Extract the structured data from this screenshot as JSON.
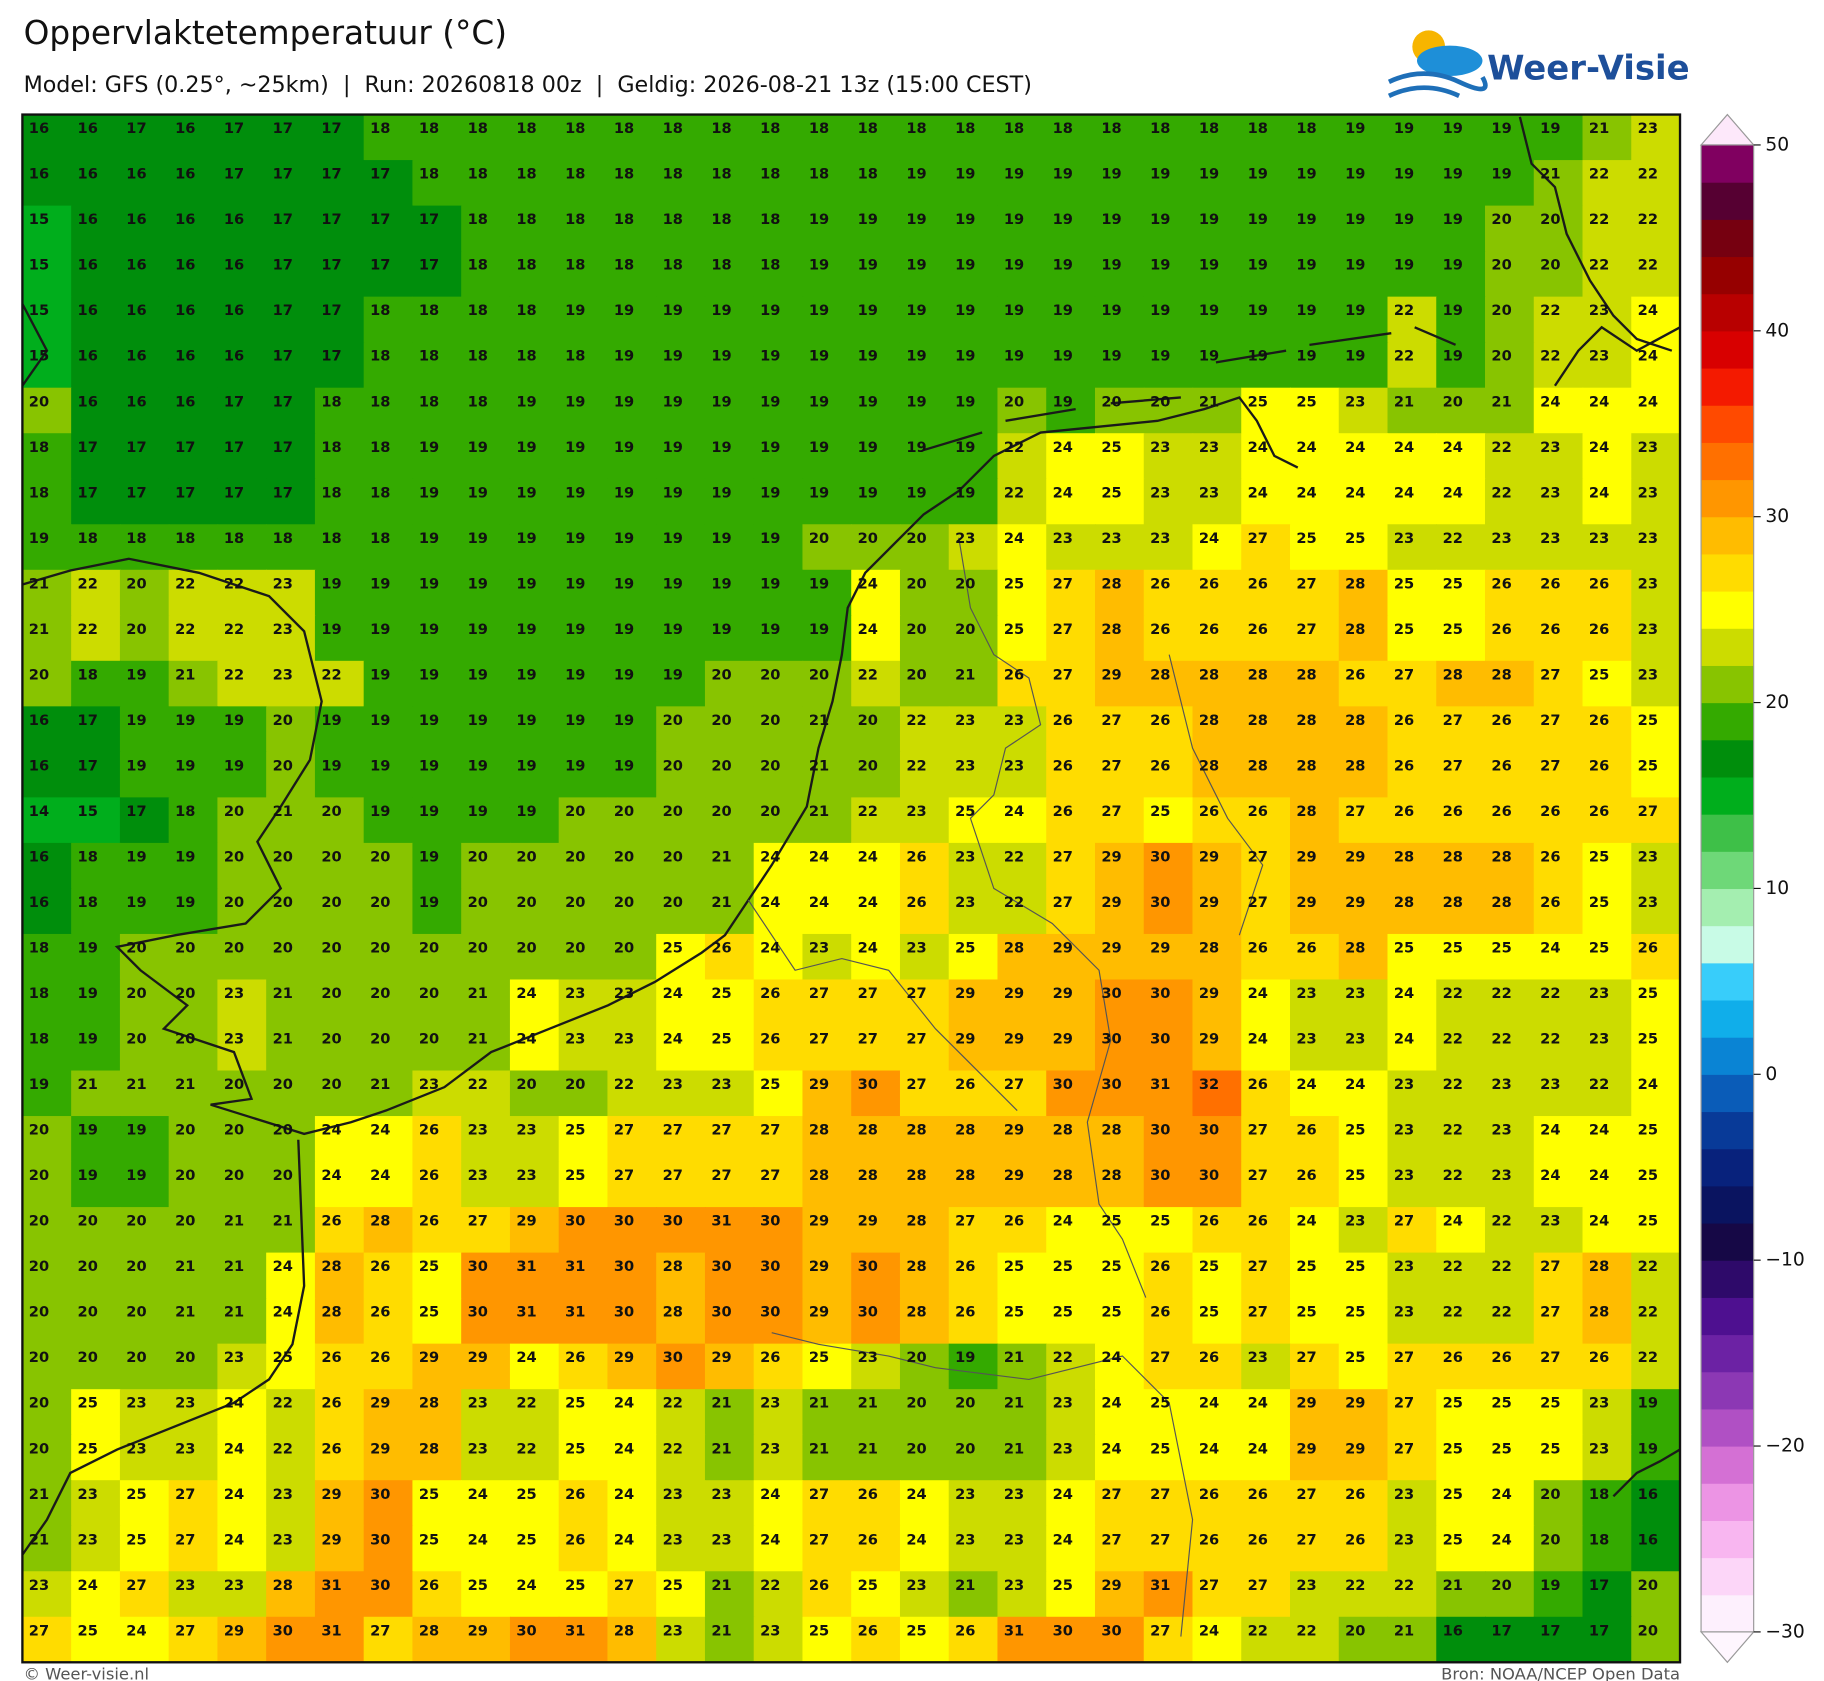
{
  "header": {
    "title": "Oppervlaktetemperatuur (°C)",
    "subtitle": "Model: GFS (0.25°, ~25km)  |  Run: 20260818 00z  |  Geldig: 2026-08-21 13z (15:00 CEST)",
    "logo": "Weer-Visie"
  },
  "map": {
    "values": [
      [
        16,
        16,
        17,
        16,
        17,
        17,
        17,
        18,
        18,
        18,
        18,
        18,
        18,
        18,
        18,
        18,
        18,
        18,
        18,
        18,
        18,
        18,
        18,
        18,
        18,
        18,
        18,
        19,
        19,
        19,
        19,
        19,
        21,
        23
      ],
      [
        16,
        16,
        16,
        16,
        17,
        17,
        17,
        17,
        18,
        18,
        18,
        18,
        18,
        18,
        18,
        18,
        18,
        18,
        19,
        19,
        19,
        19,
        19,
        19,
        19,
        19,
        19,
        19,
        19,
        19,
        19,
        21,
        22,
        22
      ],
      [
        15,
        16,
        16,
        16,
        16,
        17,
        17,
        17,
        17,
        18,
        18,
        18,
        18,
        18,
        18,
        18,
        19,
        19,
        19,
        19,
        19,
        19,
        19,
        19,
        19,
        19,
        19,
        19,
        19,
        19,
        20,
        20,
        22,
        22
      ],
      [
        15,
        16,
        16,
        16,
        16,
        17,
        17,
        17,
        17,
        18,
        18,
        18,
        18,
        18,
        18,
        18,
        19,
        19,
        19,
        19,
        19,
        19,
        19,
        19,
        19,
        19,
        19,
        19,
        19,
        19,
        20,
        20,
        22,
        22
      ],
      [
        15,
        16,
        16,
        16,
        16,
        17,
        17,
        18,
        18,
        18,
        18,
        19,
        19,
        19,
        19,
        19,
        19,
        19,
        19,
        19,
        19,
        19,
        19,
        19,
        19,
        19,
        19,
        19,
        22,
        19,
        20,
        22,
        23,
        24
      ],
      [
        15,
        16,
        16,
        16,
        16,
        17,
        17,
        18,
        18,
        18,
        18,
        18,
        19,
        19,
        19,
        19,
        19,
        19,
        19,
        19,
        19,
        19,
        19,
        19,
        19,
        19,
        19,
        19,
        22,
        19,
        20,
        22,
        23,
        24
      ],
      [
        20,
        16,
        16,
        16,
        17,
        17,
        18,
        18,
        18,
        18,
        19,
        19,
        19,
        19,
        19,
        19,
        19,
        19,
        19,
        19,
        20,
        19,
        20,
        20,
        21,
        25,
        25,
        23,
        21,
        20,
        21,
        24,
        24,
        24
      ],
      [
        18,
        17,
        17,
        17,
        17,
        17,
        18,
        18,
        19,
        19,
        19,
        19,
        19,
        19,
        19,
        19,
        19,
        19,
        19,
        19,
        22,
        24,
        25,
        23,
        23,
        24,
        24,
        24,
        24,
        24,
        22,
        23,
        24,
        23
      ],
      [
        18,
        17,
        17,
        17,
        17,
        17,
        18,
        18,
        19,
        19,
        19,
        19,
        19,
        19,
        19,
        19,
        19,
        19,
        19,
        19,
        22,
        24,
        25,
        23,
        23,
        24,
        24,
        24,
        24,
        24,
        22,
        23,
        24,
        23
      ],
      [
        19,
        18,
        18,
        18,
        18,
        18,
        18,
        18,
        19,
        19,
        19,
        19,
        19,
        19,
        19,
        19,
        20,
        20,
        20,
        23,
        24,
        23,
        23,
        23,
        24,
        27,
        25,
        25,
        23,
        22,
        23,
        23,
        23,
        23
      ],
      [
        21,
        22,
        20,
        22,
        22,
        23,
        19,
        19,
        19,
        19,
        19,
        19,
        19,
        19,
        19,
        19,
        19,
        24,
        20,
        20,
        25,
        27,
        28,
        26,
        26,
        26,
        27,
        28,
        25,
        25,
        26,
        26,
        26,
        23
      ],
      [
        21,
        22,
        20,
        22,
        22,
        23,
        19,
        19,
        19,
        19,
        19,
        19,
        19,
        19,
        19,
        19,
        19,
        24,
        20,
        20,
        25,
        27,
        28,
        26,
        26,
        26,
        27,
        28,
        25,
        25,
        26,
        26,
        26,
        23
      ],
      [
        20,
        18,
        19,
        21,
        22,
        23,
        22,
        19,
        19,
        19,
        19,
        19,
        19,
        19,
        20,
        20,
        20,
        22,
        20,
        21,
        26,
        27,
        29,
        28,
        28,
        28,
        28,
        26,
        27,
        28,
        28,
        27,
        25,
        23
      ],
      [
        16,
        17,
        19,
        19,
        19,
        20,
        19,
        19,
        19,
        19,
        19,
        19,
        19,
        20,
        20,
        20,
        21,
        20,
        22,
        23,
        23,
        26,
        27,
        26,
        28,
        28,
        28,
        28,
        26,
        27,
        26,
        27,
        26,
        25
      ],
      [
        16,
        17,
        19,
        19,
        19,
        20,
        19,
        19,
        19,
        19,
        19,
        19,
        19,
        20,
        20,
        20,
        21,
        20,
        22,
        23,
        23,
        26,
        27,
        26,
        28,
        28,
        28,
        28,
        26,
        27,
        26,
        27,
        26,
        25
      ],
      [
        14,
        15,
        17,
        18,
        20,
        21,
        20,
        19,
        19,
        19,
        19,
        20,
        20,
        20,
        20,
        20,
        21,
        22,
        23,
        25,
        24,
        26,
        27,
        25,
        26,
        26,
        28,
        27,
        26,
        26,
        26,
        26,
        26,
        27
      ],
      [
        16,
        18,
        19,
        19,
        20,
        20,
        20,
        20,
        19,
        20,
        20,
        20,
        20,
        20,
        21,
        24,
        24,
        24,
        26,
        23,
        22,
        27,
        29,
        30,
        29,
        27,
        29,
        29,
        28,
        28,
        28,
        26,
        25,
        23
      ],
      [
        16,
        18,
        19,
        19,
        20,
        20,
        20,
        20,
        19,
        20,
        20,
        20,
        20,
        20,
        21,
        24,
        24,
        24,
        26,
        23,
        22,
        27,
        29,
        30,
        29,
        27,
        29,
        29,
        28,
        28,
        28,
        26,
        25,
        23
      ],
      [
        18,
        19,
        20,
        20,
        20,
        20,
        20,
        20,
        20,
        20,
        20,
        20,
        20,
        25,
        26,
        24,
        23,
        24,
        23,
        25,
        28,
        29,
        29,
        29,
        28,
        26,
        26,
        28,
        25,
        25,
        25,
        24,
        25,
        26
      ],
      [
        18,
        19,
        20,
        20,
        23,
        21,
        20,
        20,
        20,
        21,
        24,
        23,
        23,
        24,
        25,
        26,
        27,
        27,
        27,
        29,
        29,
        29,
        30,
        30,
        29,
        24,
        23,
        23,
        24,
        22,
        22,
        22,
        23,
        25
      ],
      [
        18,
        19,
        20,
        20,
        23,
        21,
        20,
        20,
        20,
        21,
        24,
        23,
        23,
        24,
        25,
        26,
        27,
        27,
        27,
        29,
        29,
        29,
        30,
        30,
        29,
        24,
        23,
        23,
        24,
        22,
        22,
        22,
        23,
        25
      ],
      [
        19,
        21,
        21,
        21,
        20,
        20,
        20,
        21,
        23,
        22,
        20,
        20,
        22,
        23,
        23,
        25,
        29,
        30,
        27,
        26,
        27,
        30,
        30,
        31,
        32,
        26,
        24,
        24,
        23,
        22,
        23,
        23,
        22,
        24
      ],
      [
        20,
        19,
        19,
        20,
        20,
        20,
        24,
        24,
        26,
        23,
        23,
        25,
        27,
        27,
        27,
        27,
        28,
        28,
        28,
        28,
        29,
        28,
        28,
        30,
        30,
        27,
        26,
        25,
        23,
        22,
        23,
        24,
        24,
        25
      ],
      [
        20,
        19,
        19,
        20,
        20,
        20,
        24,
        24,
        26,
        23,
        23,
        25,
        27,
        27,
        27,
        27,
        28,
        28,
        28,
        28,
        29,
        28,
        28,
        30,
        30,
        27,
        26,
        25,
        23,
        22,
        23,
        24,
        24,
        25
      ],
      [
        20,
        20,
        20,
        20,
        21,
        21,
        26,
        28,
        26,
        27,
        29,
        30,
        30,
        30,
        31,
        30,
        29,
        29,
        28,
        27,
        26,
        24,
        25,
        25,
        26,
        26,
        24,
        23,
        27,
        24,
        22,
        23,
        24,
        25
      ],
      [
        20,
        20,
        20,
        21,
        21,
        24,
        28,
        26,
        25,
        30,
        31,
        31,
        30,
        28,
        30,
        30,
        29,
        30,
        28,
        26,
        25,
        25,
        25,
        26,
        25,
        27,
        25,
        25,
        23,
        22,
        22,
        27,
        28,
        22
      ],
      [
        20,
        20,
        20,
        21,
        21,
        24,
        28,
        26,
        25,
        30,
        31,
        31,
        30,
        28,
        30,
        30,
        29,
        30,
        28,
        26,
        25,
        25,
        25,
        26,
        25,
        27,
        25,
        25,
        23,
        22,
        22,
        27,
        28,
        22
      ],
      [
        20,
        20,
        20,
        20,
        23,
        25,
        26,
        26,
        29,
        29,
        24,
        26,
        29,
        30,
        29,
        26,
        25,
        23,
        20,
        19,
        21,
        22,
        24,
        27,
        26,
        23,
        27,
        25,
        27,
        26,
        26,
        27,
        26,
        22
      ],
      [
        20,
        25,
        23,
        23,
        24,
        22,
        26,
        29,
        28,
        23,
        22,
        25,
        24,
        22,
        21,
        23,
        21,
        21,
        20,
        20,
        21,
        23,
        24,
        25,
        24,
        24,
        29,
        29,
        27,
        25,
        25,
        25,
        23,
        19
      ],
      [
        20,
        25,
        23,
        23,
        24,
        22,
        26,
        29,
        28,
        23,
        22,
        25,
        24,
        22,
        21,
        23,
        21,
        21,
        20,
        20,
        21,
        23,
        24,
        25,
        24,
        24,
        29,
        29,
        27,
        25,
        25,
        25,
        23,
        19
      ],
      [
        21,
        23,
        25,
        27,
        24,
        23,
        29,
        30,
        25,
        24,
        25,
        26,
        24,
        23,
        23,
        24,
        27,
        26,
        24,
        23,
        23,
        24,
        27,
        27,
        26,
        26,
        27,
        26,
        23,
        25,
        24,
        20,
        18,
        16
      ],
      [
        21,
        23,
        25,
        27,
        24,
        23,
        29,
        30,
        25,
        24,
        25,
        26,
        24,
        23,
        23,
        24,
        27,
        26,
        24,
        23,
        23,
        24,
        27,
        27,
        26,
        26,
        27,
        26,
        23,
        25,
        24,
        20,
        18,
        16
      ],
      [
        23,
        24,
        27,
        23,
        23,
        28,
        31,
        30,
        26,
        25,
        24,
        25,
        27,
        25,
        21,
        22,
        26,
        25,
        23,
        21,
        23,
        25,
        29,
        31,
        27,
        27,
        23,
        22,
        22,
        21,
        20,
        19,
        17,
        20
      ],
      [
        27,
        25,
        24,
        27,
        29,
        30,
        31,
        27,
        28,
        29,
        30,
        31,
        28,
        23,
        21,
        23,
        25,
        26,
        25,
        26,
        31,
        30,
        30,
        27,
        24,
        22,
        22,
        20,
        21,
        16,
        17,
        17,
        17,
        20
      ]
    ]
  },
  "colorbar": {
    "lim": [
      -30,
      50
    ],
    "ticks": [
      {
        "value": -30,
        "label": "−30"
      },
      {
        "value": -20,
        "label": "−20"
      },
      {
        "value": -10,
        "label": "−10"
      },
      0,
      10,
      20,
      30,
      40,
      50
    ],
    "colors": [
      "#fdf0fd",
      "#fcd6f8",
      "#f8b6f0",
      "#ec94e4",
      "#d470d4",
      "#b050c4",
      "#8c38b4",
      "#6c22a4",
      "#4e1090",
      "#2e0a6a",
      "#160846",
      "#0a1460",
      "#08227c",
      "#083a98",
      "#0a5cb8",
      "#0a84d4",
      "#10aeea",
      "#38cdfa",
      "#c8fbe6",
      "#a4eeb0",
      "#6ed878",
      "#3ec048",
      "#00ae1c",
      "#008e0c",
      "#34aa00",
      "#88c400",
      "#ccdc00",
      "#ffff00",
      "#ffdc00",
      "#ffbc00",
      "#ff9600",
      "#ff7000",
      "#ff4a00",
      "#f41a00",
      "#d80000",
      "#b80000",
      "#960000",
      "#760010",
      "#560032",
      "#800060"
    ]
  },
  "footer": {
    "left": "© Weer-visie.nl",
    "right": "Bron: NOAA/NCEP Open Data"
  }
}
